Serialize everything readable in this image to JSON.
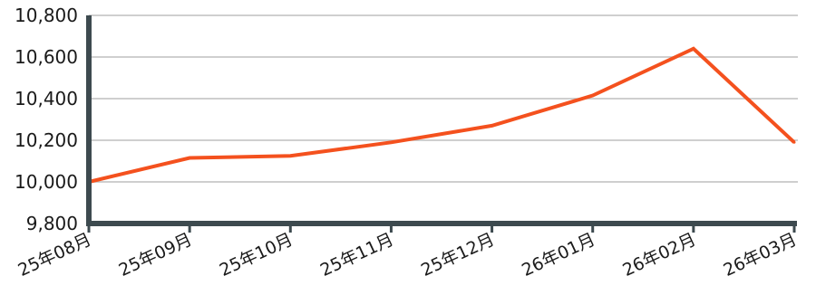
{
  "chart_data": {
    "type": "line",
    "title": "",
    "xlabel": "",
    "ylabel": "",
    "categories": [
      "25年08月",
      "25年09月",
      "25年10月",
      "25年11月",
      "25年12月",
      "26年01月",
      "26年02月",
      "26年03月"
    ],
    "series": [
      {
        "values": [
          10000,
          10115,
          10125,
          10190,
          10270,
          10415,
          10640,
          10190
        ],
        "color": "#f4511e"
      }
    ],
    "ylim": [
      9800,
      10800
    ],
    "yticks": [
      9800,
      10000,
      10200,
      10400,
      10600,
      10800
    ],
    "ytick_labels": [
      "9,800",
      "10,000",
      "10,200",
      "10,400",
      "10,600",
      "10,800"
    ],
    "grid": true,
    "legend": "none",
    "colors": {
      "axis": "#3d4a4f",
      "grid": "#bfbfbf",
      "text": "#1a1a1a"
    }
  }
}
